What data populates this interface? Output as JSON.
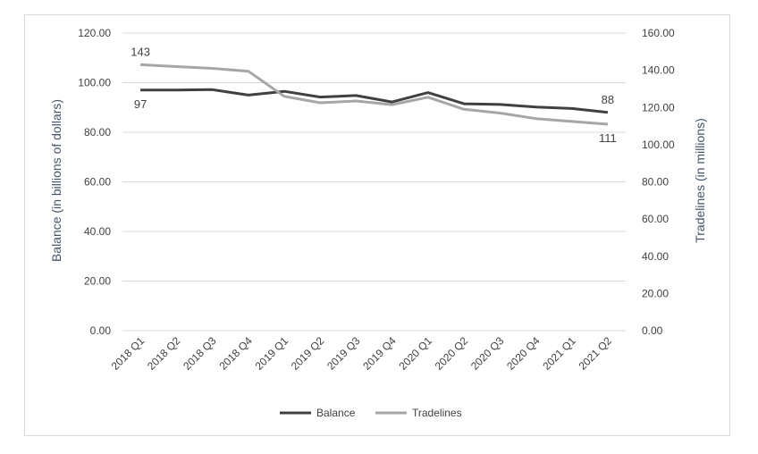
{
  "chart_data": {
    "type": "line",
    "categories": [
      "2018 Q1",
      "2018 Q2",
      "2018 Q3",
      "2018 Q4",
      "2019 Q1",
      "2019 Q2",
      "2019 Q3",
      "2019 Q4",
      "2020 Q1",
      "2020 Q2",
      "2020 Q3",
      "2020 Q4",
      "2021 Q1",
      "2021 Q2"
    ],
    "series": [
      {
        "name": "Balance",
        "axis": "left",
        "color": "#404040",
        "values": [
          97,
          97,
          97.2,
          95,
          96.5,
          94.2,
          94.8,
          92.2,
          96,
          91.5,
          91.2,
          90.2,
          89.6,
          88
        ]
      },
      {
        "name": "Tradelines",
        "axis": "right",
        "color": "#a6a6a6",
        "values": [
          143,
          142,
          141,
          139.5,
          126,
          122.5,
          123.5,
          121.5,
          125.5,
          119,
          117,
          114,
          112.5,
          111
        ]
      }
    ],
    "y_left": {
      "label": "Balance (in billions of dollars)",
      "ylim": [
        0,
        120
      ],
      "ticks": [
        0,
        20,
        40,
        60,
        80,
        100,
        120
      ],
      "tick_labels": [
        "0.00",
        "20.00",
        "40.00",
        "60.00",
        "80.00",
        "100.00",
        "120.00"
      ]
    },
    "y_right": {
      "label": "Tradelines (in millions)",
      "ylim": [
        0,
        160
      ],
      "ticks": [
        0,
        20,
        40,
        60,
        80,
        100,
        120,
        140,
        160
      ],
      "tick_labels": [
        "0.00",
        "20.00",
        "40.00",
        "60.00",
        "80.00",
        "100.00",
        "120.00",
        "140.00",
        "160.00"
      ]
    },
    "data_labels": [
      {
        "text": "143",
        "series": "Tradelines",
        "index": 0,
        "position": "above"
      },
      {
        "text": "97",
        "series": "Balance",
        "index": 0,
        "position": "below"
      },
      {
        "text": "88",
        "series": "Balance",
        "index": 13,
        "position": "above"
      },
      {
        "text": "111",
        "series": "Tradelines",
        "index": 13,
        "position": "below"
      }
    ],
    "grid": true,
    "legend_position": "bottom"
  }
}
